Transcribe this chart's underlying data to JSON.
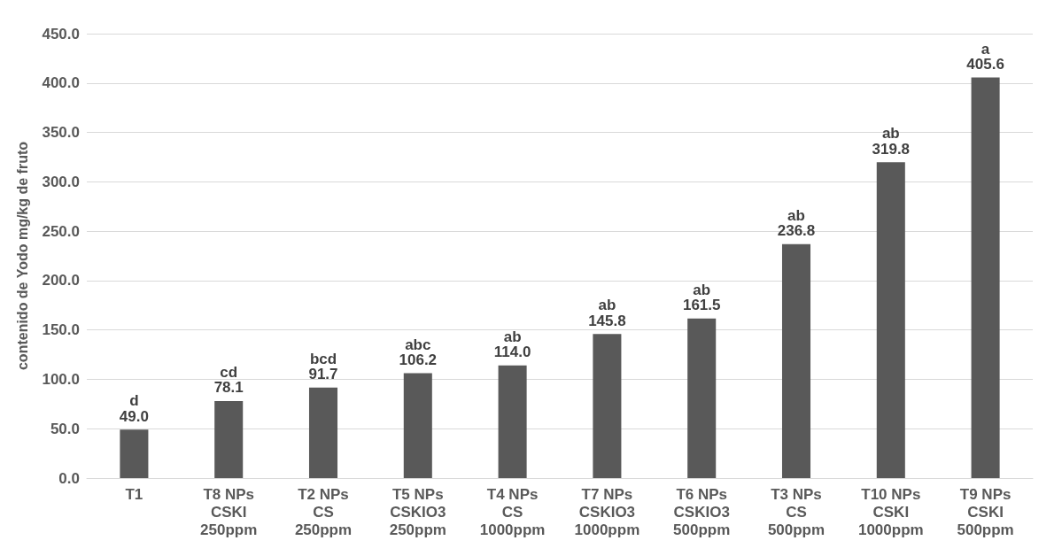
{
  "chart_data": {
    "type": "bar",
    "ylabel": "contenido de Yodo mg/kg de fruto",
    "categories": [
      "T1",
      "T8 NPs\nCSKI\n250ppm",
      "T2 NPs\nCS\n250ppm",
      "T5 NPs\nCSKIO3\n250ppm",
      "T4 NPs\nCS\n1000ppm",
      "T7 NPs\nCSKIO3\n1000ppm",
      "T6 NPs\nCSKIO3\n500ppm",
      "T3 NPs\nCS\n500ppm",
      "T10 NPs\nCSKI\n1000ppm",
      "T9 NPs\nCSKI\n500ppm"
    ],
    "values": [
      49.0,
      78.1,
      91.7,
      106.2,
      114.0,
      145.8,
      161.5,
      236.8,
      319.8,
      405.6
    ],
    "color": "#595959",
    "grid": "y",
    "value_labels": [
      "49.0",
      "78.1",
      "91.7",
      "106.2",
      "114.0",
      "145.8",
      "161.5",
      "236.8",
      "319.8",
      "405.6"
    ],
    "ylim": [
      0,
      450
    ],
    "yticks": [
      {
        "value": 0,
        "label": "0.0"
      },
      {
        "value": 50,
        "label": "50.0"
      },
      {
        "value": 100,
        "label": "100.0"
      },
      {
        "value": 150,
        "label": "150.0"
      },
      {
        "value": 200,
        "label": "200.0"
      },
      {
        "value": 250,
        "label": "250.0"
      },
      {
        "value": 300,
        "label": "300.0"
      },
      {
        "value": 350,
        "label": "350.0"
      },
      {
        "value": 400,
        "label": "400.0"
      },
      {
        "value": 450,
        "label": "450.0"
      }
    ],
    "annotations": [
      {
        "text": "d",
        "x": "T1",
        "y": 49.0
      },
      {
        "text": "cd",
        "x": "T8 NPs\nCSKI\n250ppm",
        "y": 78.1
      },
      {
        "text": "bcd",
        "x": "T2 NPs\nCS\n250ppm",
        "y": 91.7
      },
      {
        "text": "abc",
        "x": "T5 NPs\nCSKIO3\n250ppm",
        "y": 106.2
      },
      {
        "text": "ab",
        "x": "T4 NPs\nCS\n1000ppm",
        "y": 114.0
      },
      {
        "text": "ab",
        "x": "T7 NPs\nCSKIO3\n1000ppm",
        "y": 145.8
      },
      {
        "text": "ab",
        "x": "T6 NPs\nCSKIO3\n500ppm",
        "y": 161.5
      },
      {
        "text": "ab",
        "x": "T3 NPs\nCS\n500ppm",
        "y": 236.8
      },
      {
        "text": "ab",
        "x": "T10 NPs\nCSKI\n1000ppm",
        "y": 319.8
      },
      {
        "text": "a",
        "x": "T9 NPs\nCSKI\n500ppm",
        "y": 405.6
      }
    ]
  }
}
